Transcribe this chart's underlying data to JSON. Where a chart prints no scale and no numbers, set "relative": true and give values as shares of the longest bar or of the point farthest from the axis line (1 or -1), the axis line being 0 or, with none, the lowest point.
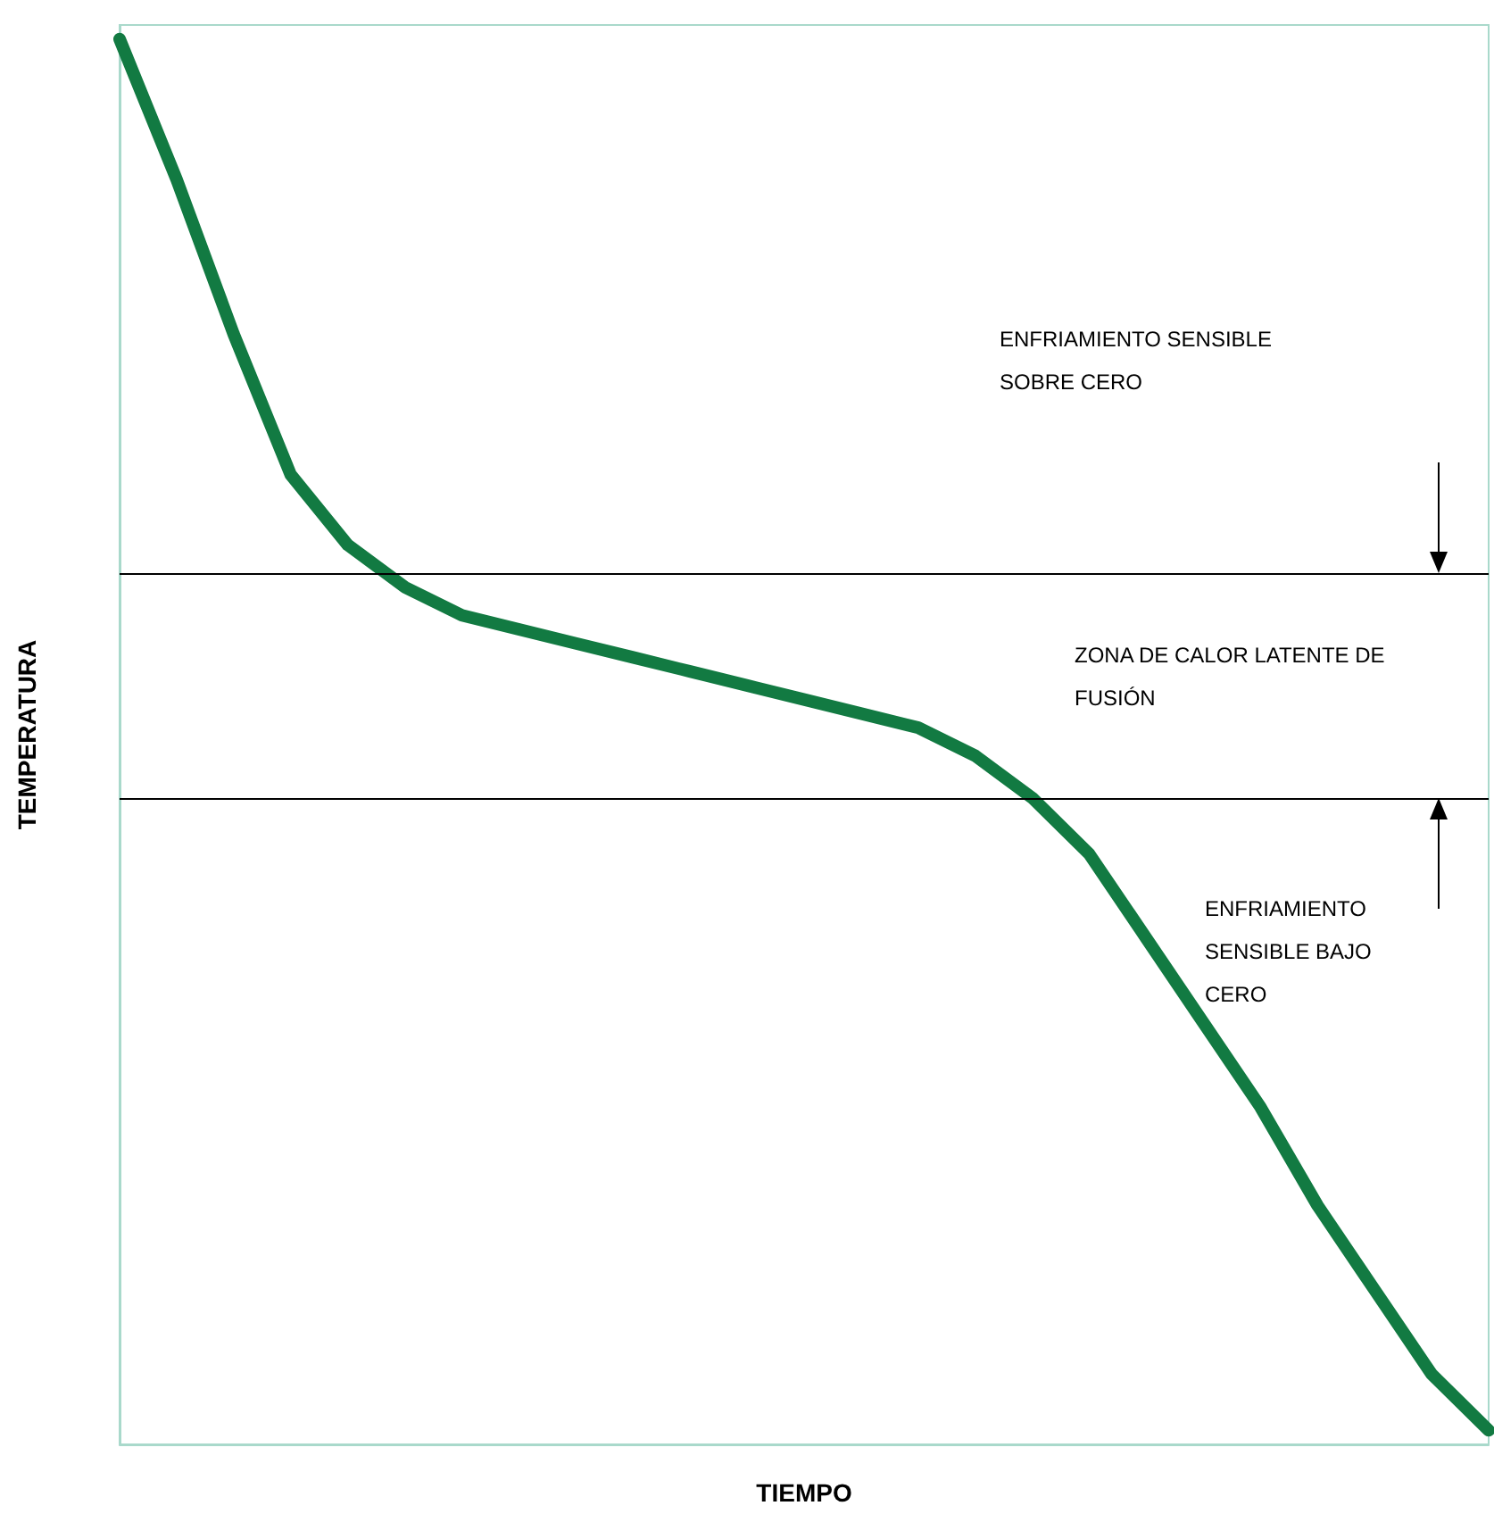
{
  "chart_data": {
    "type": "line",
    "relative": true,
    "xlabel": "TIEMPO",
    "ylabel": "TEMPERATURA",
    "categories": [
      null,
      null,
      null,
      null,
      null,
      null,
      null,
      null,
      null,
      null,
      null,
      null,
      null,
      null,
      null,
      null,
      null,
      null,
      null,
      null,
      null,
      null,
      null,
      null,
      null
    ],
    "series": [
      {
        "color": "#127a42",
        "values": [
          1.0,
          0.9,
          0.79,
          0.69,
          0.64,
          0.61,
          0.59,
          0.58,
          0.57,
          0.56,
          0.55,
          0.54,
          0.53,
          0.52,
          0.51,
          0.49,
          0.46,
          0.42,
          0.36,
          0.3,
          0.24,
          0.17,
          0.11,
          0.05,
          0.01
        ]
      }
    ],
    "ref_lines": [
      {
        "axis": "y",
        "value": 0.62,
        "color": "#000000"
      },
      {
        "axis": "y",
        "value": 0.46,
        "color": "#000000"
      }
    ],
    "annotations": [
      "ENFRIAMIENTO SENSIBLE SOBRE CERO",
      "ZONA DE CALOR LATENTE DE FUSIÓN",
      "ENFRIAMIENTO SENSIBLE BAJO CERO"
    ],
    "grid": false,
    "marker": "none",
    "line_style": "solid"
  }
}
